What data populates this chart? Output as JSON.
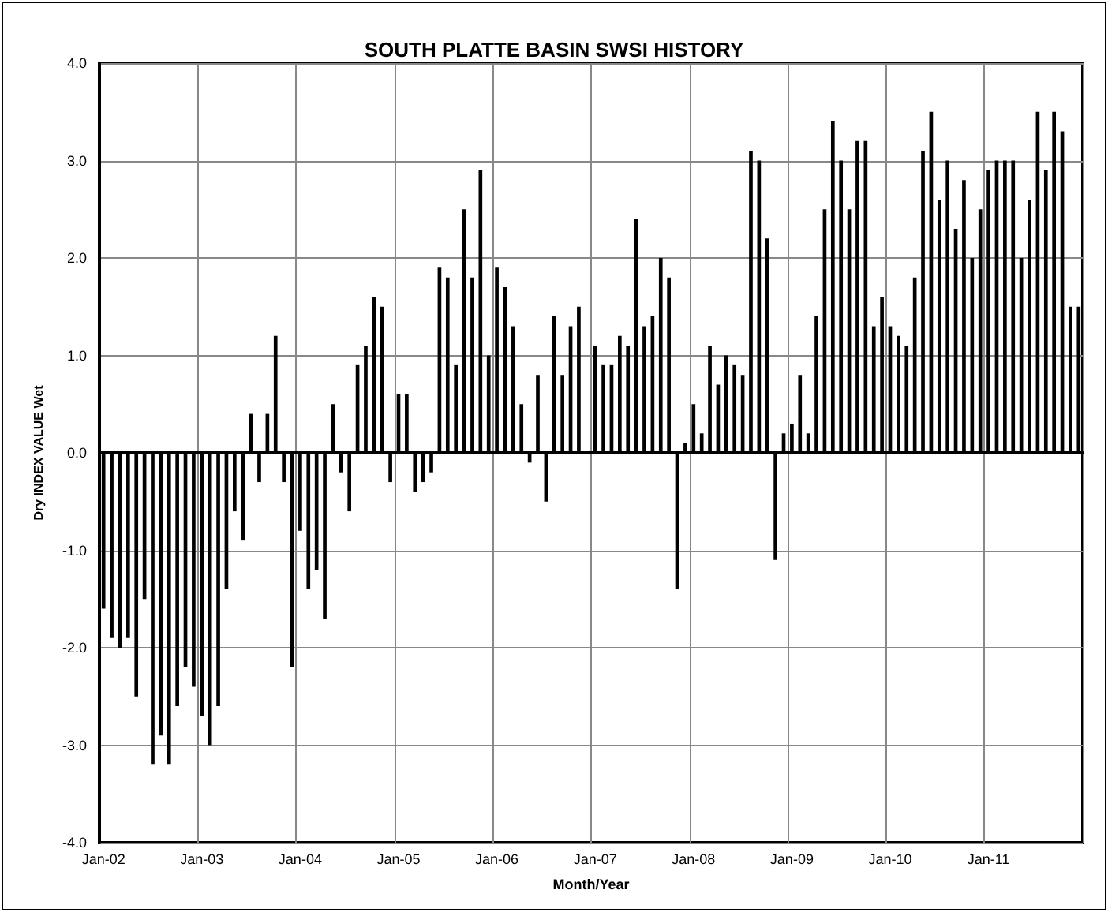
{
  "chart_data": {
    "type": "bar",
    "title": "SOUTH PLATTE BASIN SWSI HISTORY",
    "xlabel": "Month/Year",
    "ylabel": "Dry INDEX VALUE Wet",
    "categories": [
      "Jan-02",
      null,
      null,
      null,
      null,
      null,
      null,
      null,
      null,
      null,
      null,
      null,
      "Jan-03",
      null,
      null,
      null,
      null,
      null,
      null,
      null,
      null,
      null,
      null,
      null,
      "Jan-04",
      null,
      null,
      null,
      null,
      null,
      null,
      null,
      null,
      null,
      null,
      null,
      "Jan-05",
      null,
      null,
      null,
      null,
      null,
      null,
      null,
      null,
      null,
      null,
      null,
      "Jan-06",
      null,
      null,
      null,
      null,
      null,
      null,
      null,
      null,
      null,
      null,
      null,
      "Jan-07",
      null,
      null,
      null,
      null,
      null,
      null,
      null,
      null,
      null,
      null,
      null,
      "Jan-08",
      null,
      null,
      null,
      null,
      null,
      null,
      null,
      null,
      null,
      null,
      null,
      "Jan-09",
      null,
      null,
      null,
      null,
      null,
      null,
      null,
      null,
      null,
      null,
      null,
      "Jan-10",
      null,
      null,
      null,
      null,
      null,
      null,
      null,
      null,
      null,
      null,
      null,
      "Jan-11",
      null,
      null,
      null,
      null,
      null,
      null,
      null,
      null,
      null,
      null,
      null
    ],
    "values": [
      -1.6,
      -1.9,
      -2.0,
      -1.9,
      -2.5,
      -1.5,
      -3.2,
      -2.9,
      -3.2,
      -2.6,
      -2.2,
      -2.4,
      -2.7,
      -3.0,
      -2.6,
      -1.4,
      -0.6,
      -0.9,
      0.4,
      -0.3,
      0.4,
      1.2,
      -0.3,
      -2.2,
      -0.8,
      -1.4,
      -1.2,
      -1.7,
      0.5,
      -0.2,
      -0.6,
      0.9,
      1.1,
      1.6,
      1.5,
      -0.3,
      0.6,
      0.6,
      -0.4,
      -0.3,
      -0.2,
      1.9,
      1.8,
      0.9,
      2.5,
      1.8,
      2.9,
      1.0,
      1.9,
      1.7,
      1.3,
      0.5,
      -0.1,
      0.8,
      -0.5,
      1.4,
      0.8,
      1.3,
      1.5,
      0,
      1.1,
      0.9,
      0.9,
      1.2,
      1.1,
      2.4,
      1.3,
      1.4,
      2.0,
      1.8,
      -1.4,
      0.1,
      0.5,
      0.2,
      1.1,
      0.7,
      1.0,
      0.9,
      0.8,
      3.1,
      3.0,
      2.2,
      -1.1,
      0.2,
      0.3,
      0.8,
      0.2,
      1.4,
      2.5,
      3.4,
      3.0,
      2.5,
      3.2,
      3.2,
      1.3,
      1.6,
      1.3,
      1.2,
      1.1,
      1.8,
      3.1,
      3.5,
      2.6,
      3.0,
      2.3,
      2.8,
      2.0,
      2.5,
      2.9,
      3.0,
      3.0,
      3.0,
      2.0,
      2.6,
      3.5,
      2.9,
      3.5,
      3.3,
      1.5,
      1.5
    ],
    "color": "#000000",
    "ylim": [
      -4,
      4
    ],
    "yticks": [
      {
        "value": -4,
        "label": "-4.0"
      },
      {
        "value": -3,
        "label": "-3.0"
      },
      {
        "value": -2,
        "label": "-2.0"
      },
      {
        "value": -1,
        "label": "-1.0"
      },
      {
        "value": 0,
        "label": "0.0"
      },
      {
        "value": 1,
        "label": "1.0"
      },
      {
        "value": 2,
        "label": "2.0"
      },
      {
        "value": 3,
        "label": "3.0"
      },
      {
        "value": 4,
        "label": "4.0"
      }
    ],
    "grid": true
  }
}
